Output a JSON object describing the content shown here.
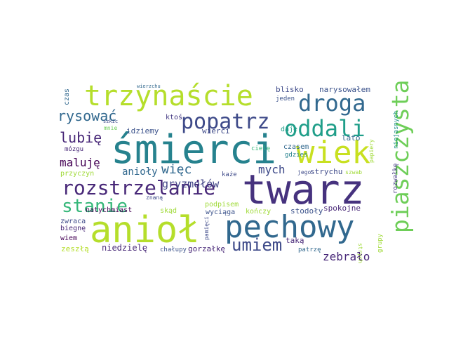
{
  "words": [
    {
      "text": "trzynaście",
      "color": "#b5de2b"
    },
    {
      "text": "śmierci",
      "color": "#26828e"
    },
    {
      "text": "twarz",
      "color": "#46327e"
    },
    {
      "text": "anioł",
      "color": "#b5de2b"
    },
    {
      "text": "pechowy",
      "color": "#31688e"
    },
    {
      "text": "wiek",
      "color": "#c8e020"
    },
    {
      "text": "piaszczysta",
      "color": "#6ece58"
    },
    {
      "text": "droga",
      "color": "#31688e"
    },
    {
      "text": "oddali",
      "color": "#1f9e89"
    },
    {
      "text": "popatrz",
      "color": "#3e4a89"
    },
    {
      "text": "rozstrzelanie",
      "color": "#482878"
    },
    {
      "text": "stanie",
      "color": "#35b779"
    },
    {
      "text": "umiem",
      "color": "#3e4a89"
    },
    {
      "text": "rysować",
      "color": "#31688e"
    },
    {
      "text": "lubię",
      "color": "#482878"
    },
    {
      "text": "maluję",
      "color": "#440154"
    },
    {
      "text": "anioły",
      "color": "#31688e"
    },
    {
      "text": "więc",
      "color": "#31688e"
    },
    {
      "text": "mych",
      "color": "#3e4a89"
    },
    {
      "text": "gryzmołów",
      "color": "#414487"
    },
    {
      "text": "zebrało",
      "color": "#482878"
    },
    {
      "text": "narysowałem",
      "color": "#3b528b"
    },
    {
      "text": "blisko",
      "color": "#3e4a89"
    },
    {
      "text": "jeden",
      "color": "#3b528b"
    },
    {
      "text": "daje",
      "color": "#1f9e89"
    },
    {
      "text": "lato",
      "color": "#31688e"
    },
    {
      "text": "czasem",
      "color": "#31688e"
    },
    {
      "text": "gdzieś",
      "color": "#26828e"
    },
    {
      "text": "strychu",
      "color": "#3e4a89"
    },
    {
      "text": "jego",
      "color": "#3e4a89"
    },
    {
      "text": "szwab",
      "color": "#a0da39"
    },
    {
      "text": "niejasnych",
      "color": "#21918c"
    },
    {
      "text": "rozwałkę",
      "color": "#443983"
    },
    {
      "text": "papiery",
      "color": "#a0da39"
    },
    {
      "text": "ktoś",
      "color": "#443983"
    },
    {
      "text": "idziemy",
      "color": "#3b528b"
    },
    {
      "text": "mnie",
      "color": "#6ece58"
    },
    {
      "text": "mózgu",
      "color": "#482878"
    },
    {
      "text": "czas",
      "color": "#31688e"
    },
    {
      "text": "wierzchu",
      "color": "#31688e"
    },
    {
      "text": "szkic",
      "color": "#3e4a89"
    },
    {
      "text": "wierci",
      "color": "#3e4a89"
    },
    {
      "text": "cielę",
      "color": "#35b779"
    },
    {
      "text": "każe",
      "color": "#3e4a89"
    },
    {
      "text": "przyczyn",
      "color": "#a0da39"
    },
    {
      "text": "znaną",
      "color": "#3e4a89"
    },
    {
      "text": "natychmiast",
      "color": "#440154"
    },
    {
      "text": "skąd",
      "color": "#a0da39"
    },
    {
      "text": "podpisem",
      "color": "#a0da39"
    },
    {
      "text": "wyciąga",
      "color": "#3b528b"
    },
    {
      "text": "kończy",
      "color": "#a0da39"
    },
    {
      "text": "stodoły",
      "color": "#3b528b"
    },
    {
      "text": "spokojne",
      "color": "#482878"
    },
    {
      "text": "zwraca",
      "color": "#3e4a89"
    },
    {
      "text": "biegnę",
      "color": "#482878"
    },
    {
      "text": "wiem",
      "color": "#440154"
    },
    {
      "text": "pamięci",
      "color": "#3e4a89"
    },
    {
      "text": "taką",
      "color": "#482878"
    },
    {
      "text": "strych",
      "color": "#a0da39"
    },
    {
      "text": "patrzę",
      "color": "#31688e"
    },
    {
      "text": "chałupy",
      "color": "#3b528b"
    },
    {
      "text": "gorzałkę",
      "color": "#482878"
    },
    {
      "text": "niedzielę",
      "color": "#482878"
    },
    {
      "text": "zeszłą",
      "color": "#b5de2b"
    },
    {
      "text": "grupy",
      "color": "#a0da39"
    }
  ]
}
